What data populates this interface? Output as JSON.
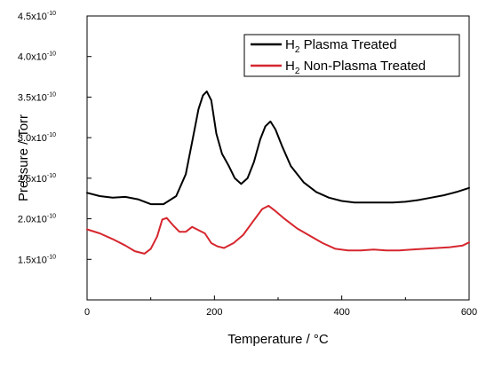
{
  "chart_data": {
    "type": "line",
    "title": "",
    "xlabel": "Temperature / °C",
    "ylabel": "Pressure / Torr",
    "xlim": [
      0,
      600
    ],
    "ylim": [
      1e-10,
      4.5e-10
    ],
    "x_ticks": [
      0,
      200,
      400,
      600
    ],
    "x_tick_labels": [
      "0",
      "200",
      "400",
      "600"
    ],
    "y_ticks": [
      {
        "value": 1.5e-10,
        "mantissa": "1.5x10",
        "exponent": "-10"
      },
      {
        "value": 2e-10,
        "mantissa": "2.0x10",
        "exponent": "-10"
      },
      {
        "value": 2.5e-10,
        "mantissa": "2.5x10",
        "exponent": "-10"
      },
      {
        "value": 3e-10,
        "mantissa": "3.0x10",
        "exponent": "-10"
      },
      {
        "value": 3.5e-10,
        "mantissa": "3.5x10",
        "exponent": "-10"
      },
      {
        "value": 4e-10,
        "mantissa": "4.0x10",
        "exponent": "-10"
      },
      {
        "value": 4.5e-10,
        "mantissa": "4.5x10",
        "exponent": "-10"
      }
    ],
    "grid": false,
    "legend_position": "top-right",
    "series": [
      {
        "name": "H2 Plasma Treated",
        "legend_main": "H",
        "legend_sub": "2",
        "legend_rest": " Plasma Treated",
        "color": "#000000",
        "x": [
          0,
          20,
          40,
          60,
          80,
          100,
          120,
          140,
          155,
          165,
          175,
          182,
          188,
          195,
          203,
          212,
          222,
          232,
          242,
          252,
          262,
          272,
          280,
          288,
          296,
          306,
          320,
          340,
          360,
          380,
          400,
          420,
          440,
          460,
          480,
          500,
          520,
          540,
          560,
          580,
          600
        ],
        "y": [
          2.32e-10,
          2.28e-10,
          2.26e-10,
          2.27e-10,
          2.24e-10,
          2.18e-10,
          2.18e-10,
          2.28e-10,
          2.55e-10,
          2.95e-10,
          3.35e-10,
          3.52e-10,
          3.57e-10,
          3.46e-10,
          3.05e-10,
          2.8e-10,
          2.66e-10,
          2.5e-10,
          2.43e-10,
          2.5e-10,
          2.7e-10,
          2.98e-10,
          3.14e-10,
          3.2e-10,
          3.1e-10,
          2.9e-10,
          2.65e-10,
          2.45e-10,
          2.33e-10,
          2.26e-10,
          2.22e-10,
          2.2e-10,
          2.2e-10,
          2.2e-10,
          2.2e-10,
          2.21e-10,
          2.23e-10,
          2.26e-10,
          2.29e-10,
          2.33e-10,
          2.38e-10
        ]
      },
      {
        "name": "H2 Non-Plasma Treated",
        "legend_main": "H",
        "legend_sub": "2",
        "legend_rest": " Non-Plasma Treated",
        "color": "#d6262e",
        "x": [
          0,
          20,
          40,
          60,
          75,
          90,
          100,
          110,
          118,
          125,
          135,
          145,
          155,
          165,
          175,
          185,
          195,
          205,
          215,
          230,
          245,
          260,
          275,
          285,
          295,
          310,
          330,
          350,
          370,
          390,
          410,
          430,
          450,
          470,
          490,
          510,
          530,
          550,
          570,
          590,
          600
        ],
        "y": [
          1.87e-10,
          1.82e-10,
          1.75e-10,
          1.67e-10,
          1.6e-10,
          1.57e-10,
          1.63e-10,
          1.78e-10,
          1.99e-10,
          2.01e-10,
          1.92e-10,
          1.84e-10,
          1.84e-10,
          1.9e-10,
          1.86e-10,
          1.82e-10,
          1.7e-10,
          1.66e-10,
          1.64e-10,
          1.7e-10,
          1.8e-10,
          1.96e-10,
          2.12e-10,
          2.16e-10,
          2.1e-10,
          2e-10,
          1.88e-10,
          1.79e-10,
          1.7e-10,
          1.63e-10,
          1.61e-10,
          1.61e-10,
          1.62e-10,
          1.61e-10,
          1.61e-10,
          1.62e-10,
          1.63e-10,
          1.64e-10,
          1.65e-10,
          1.67e-10,
          1.71e-10
        ]
      }
    ]
  }
}
